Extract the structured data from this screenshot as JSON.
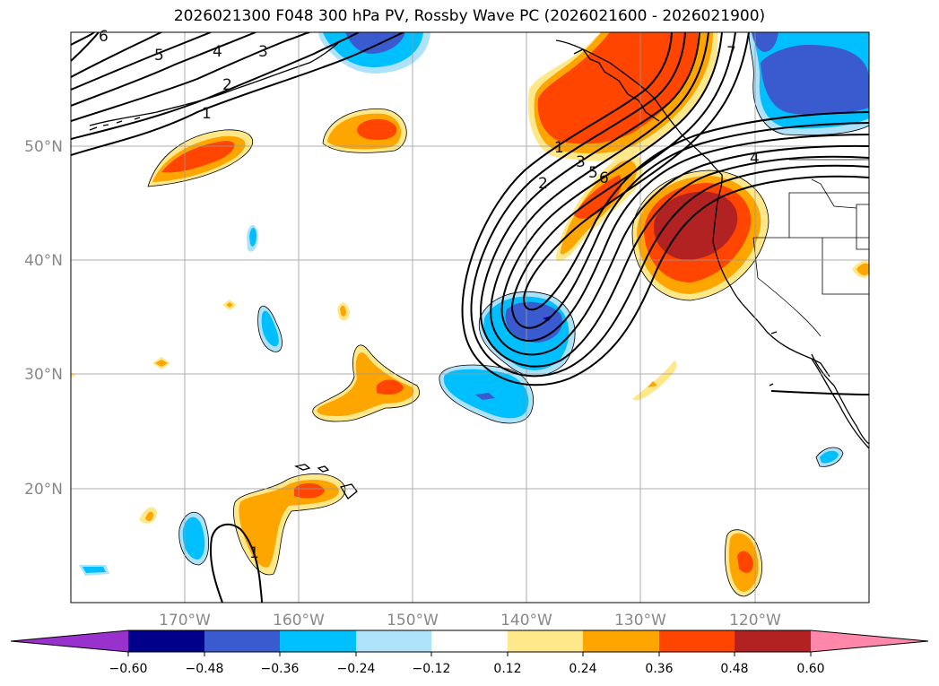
{
  "title": "2026021300 F048 300 hPa PV, Rossby Wave PC (2026021600 - 2026021900)",
  "map": {
    "lon_labels": [
      "170°W",
      "160°W",
      "150°W",
      "140°W",
      "130°W",
      "120°W"
    ],
    "lat_labels": [
      "50°N",
      "40°N",
      "30°N",
      "20°N"
    ],
    "contour_labels": [
      "1",
      "2",
      "3",
      "4",
      "5",
      "6",
      "7"
    ]
  },
  "colorbar": {
    "colors": [
      "#9932cc",
      "#00008b",
      "#3a5bd0",
      "#00bfff",
      "#aee2fa",
      "#ffffff",
      "#ffe88a",
      "#ffa500",
      "#ff4500",
      "#b22222",
      "#ff88aa"
    ],
    "tick_labels": [
      "−0.60",
      "−0.48",
      "−0.36",
      "−0.24",
      "−0.12",
      "0.12",
      "0.24",
      "0.36",
      "0.48",
      "0.60"
    ]
  }
}
